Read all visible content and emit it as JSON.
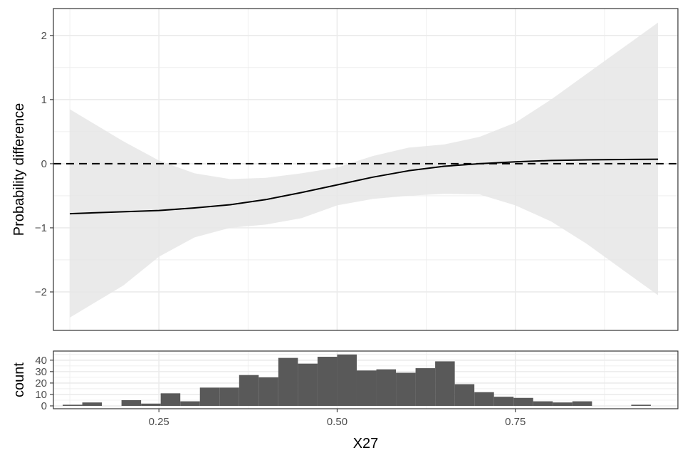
{
  "chart_data": [
    {
      "type": "line",
      "panel": "effect",
      "title": "",
      "xlabel": "",
      "ylabel": "Probability difference",
      "xlim": [
        0.102,
        0.978
      ],
      "ylim": [
        -2.6,
        2.42
      ],
      "y_ticks": [
        -2,
        -1,
        0,
        1,
        2
      ],
      "y_tick_labels": [
        "−2",
        "−1",
        "0",
        "1",
        "2"
      ],
      "grid": true,
      "reference_line": {
        "y": 0,
        "style": "dashed"
      },
      "series": [
        {
          "x": [
            0.125,
            0.2,
            0.25,
            0.3,
            0.35,
            0.4,
            0.45,
            0.5,
            0.55,
            0.6,
            0.65,
            0.7,
            0.75,
            0.8,
            0.85,
            0.9,
            0.95
          ],
          "y": [
            -0.78,
            -0.75,
            -0.73,
            -0.69,
            -0.64,
            -0.56,
            -0.45,
            -0.33,
            -0.21,
            -0.11,
            -0.04,
            0.0,
            0.03,
            0.05,
            0.06,
            0.065,
            0.07
          ]
        }
      ],
      "confidence_band": {
        "x": [
          0.125,
          0.2,
          0.25,
          0.3,
          0.35,
          0.4,
          0.45,
          0.5,
          0.55,
          0.6,
          0.65,
          0.7,
          0.75,
          0.8,
          0.85,
          0.9,
          0.95
        ],
        "upper": [
          0.85,
          0.35,
          0.05,
          -0.15,
          -0.24,
          -0.22,
          -0.15,
          -0.06,
          0.12,
          0.25,
          0.3,
          0.42,
          0.64,
          1.0,
          1.4,
          1.8,
          2.2
        ],
        "lower": [
          -2.4,
          -1.9,
          -1.45,
          -1.15,
          -1.0,
          -0.95,
          -0.85,
          -0.65,
          -0.55,
          -0.5,
          -0.47,
          -0.48,
          -0.65,
          -0.9,
          -1.25,
          -1.65,
          -2.05
        ]
      },
      "colors": {
        "line": "#000000",
        "band": "#e6e6e6",
        "grid": "#ebebeb",
        "border": "#333333"
      }
    },
    {
      "type": "bar",
      "panel": "histogram",
      "title": "",
      "xlabel": "X27",
      "ylabel": "count",
      "xlim": [
        0.102,
        0.978
      ],
      "ylim": [
        -2.5,
        48
      ],
      "x_ticks": [
        0.25,
        0.5,
        0.75
      ],
      "x_tick_labels": [
        "0.25",
        "0.50",
        "0.75"
      ],
      "y_ticks": [
        0,
        10,
        20,
        30,
        40
      ],
      "y_tick_labels": [
        "0",
        "10",
        "20",
        "30",
        "40"
      ],
      "grid": true,
      "bin_width": 0.0275,
      "bin_start": 0.115,
      "counts": [
        1,
        3,
        0,
        5,
        2,
        11,
        4,
        16,
        16,
        27,
        25,
        42,
        37,
        43,
        45,
        31,
        32,
        29,
        33,
        39,
        19,
        12,
        8,
        7,
        4,
        3,
        4,
        0,
        0,
        1
      ],
      "colors": {
        "bar": "#595959"
      }
    }
  ]
}
